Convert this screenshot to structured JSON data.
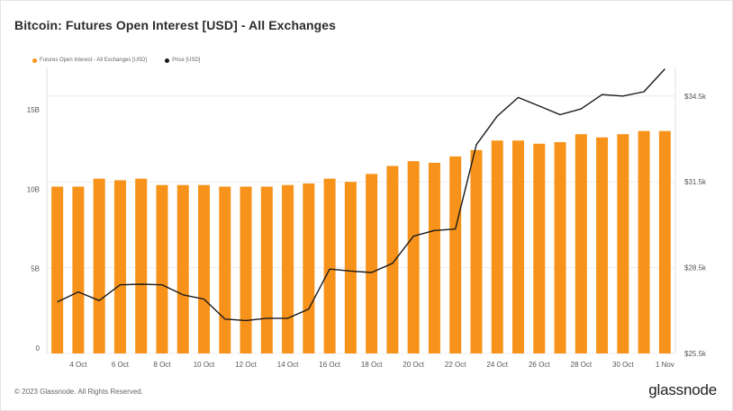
{
  "chart_data": {
    "type": "bar",
    "title": "Bitcoin: Futures Open Interest [USD] - All Exchanges",
    "legend": [
      "Futures Open Interest - All Exchanges [USD]",
      "Price [USD]"
    ],
    "legend_placement": "top-left",
    "grid": true,
    "x_tick_labels": [
      "4 Oct",
      "6 Oct",
      "8 Oct",
      "10 Oct",
      "12 Oct",
      "14 Oct",
      "16 Oct",
      "18 Oct",
      "20 Oct",
      "22 Oct",
      "24 Oct",
      "26 Oct",
      "28 Oct",
      "30 Oct",
      "1 Nov"
    ],
    "y_left_ticks": [
      "0",
      "5B",
      "10B",
      "15B"
    ],
    "y_right_ticks": [
      "$25.5k",
      "$28.5k",
      "$31.5k",
      "$34.5k"
    ],
    "ylim_left": [
      0,
      18000000000
    ],
    "ylim_right": [
      25500,
      35500
    ],
    "categories": [
      "3 Oct",
      "4 Oct",
      "5 Oct",
      "6 Oct",
      "7 Oct",
      "8 Oct",
      "9 Oct",
      "10 Oct",
      "11 Oct",
      "12 Oct",
      "13 Oct",
      "14 Oct",
      "15 Oct",
      "16 Oct",
      "17 Oct",
      "18 Oct",
      "19 Oct",
      "20 Oct",
      "21 Oct",
      "22 Oct",
      "23 Oct",
      "24 Oct",
      "25 Oct",
      "26 Oct",
      "27 Oct",
      "28 Oct",
      "29 Oct",
      "30 Oct",
      "31 Oct",
      "1 Nov"
    ],
    "series": [
      {
        "name": "Futures Open Interest - All Exchanges [USD]",
        "axis": "left",
        "color": "#f7931a",
        "values": [
          10.5,
          10.5,
          11.0,
          10.9,
          11.0,
          10.6,
          10.6,
          10.6,
          10.5,
          10.5,
          10.5,
          10.6,
          10.7,
          11.0,
          10.8,
          11.3,
          11.8,
          12.1,
          12.0,
          12.4,
          12.8,
          13.4,
          13.4,
          13.2,
          13.3,
          13.8,
          13.6,
          13.8,
          14.0,
          14.0
        ]
      },
      {
        "name": "Price [USD]",
        "axis": "right",
        "color": "#1a1a1a",
        "values": [
          27300,
          27650,
          27350,
          27900,
          27920,
          27900,
          27550,
          27400,
          26700,
          26650,
          26730,
          26730,
          27050,
          28450,
          28380,
          28330,
          28650,
          29600,
          29800,
          29850,
          32800,
          33800,
          34450,
          34150,
          33850,
          34050,
          34550,
          34500,
          34650,
          35450
        ]
      }
    ],
    "series_scale_note": "left values in billions USD"
  },
  "footer": {
    "copyright": "© 2023 Glassnode. All Rights Reserved.",
    "logo": "glassnode"
  }
}
